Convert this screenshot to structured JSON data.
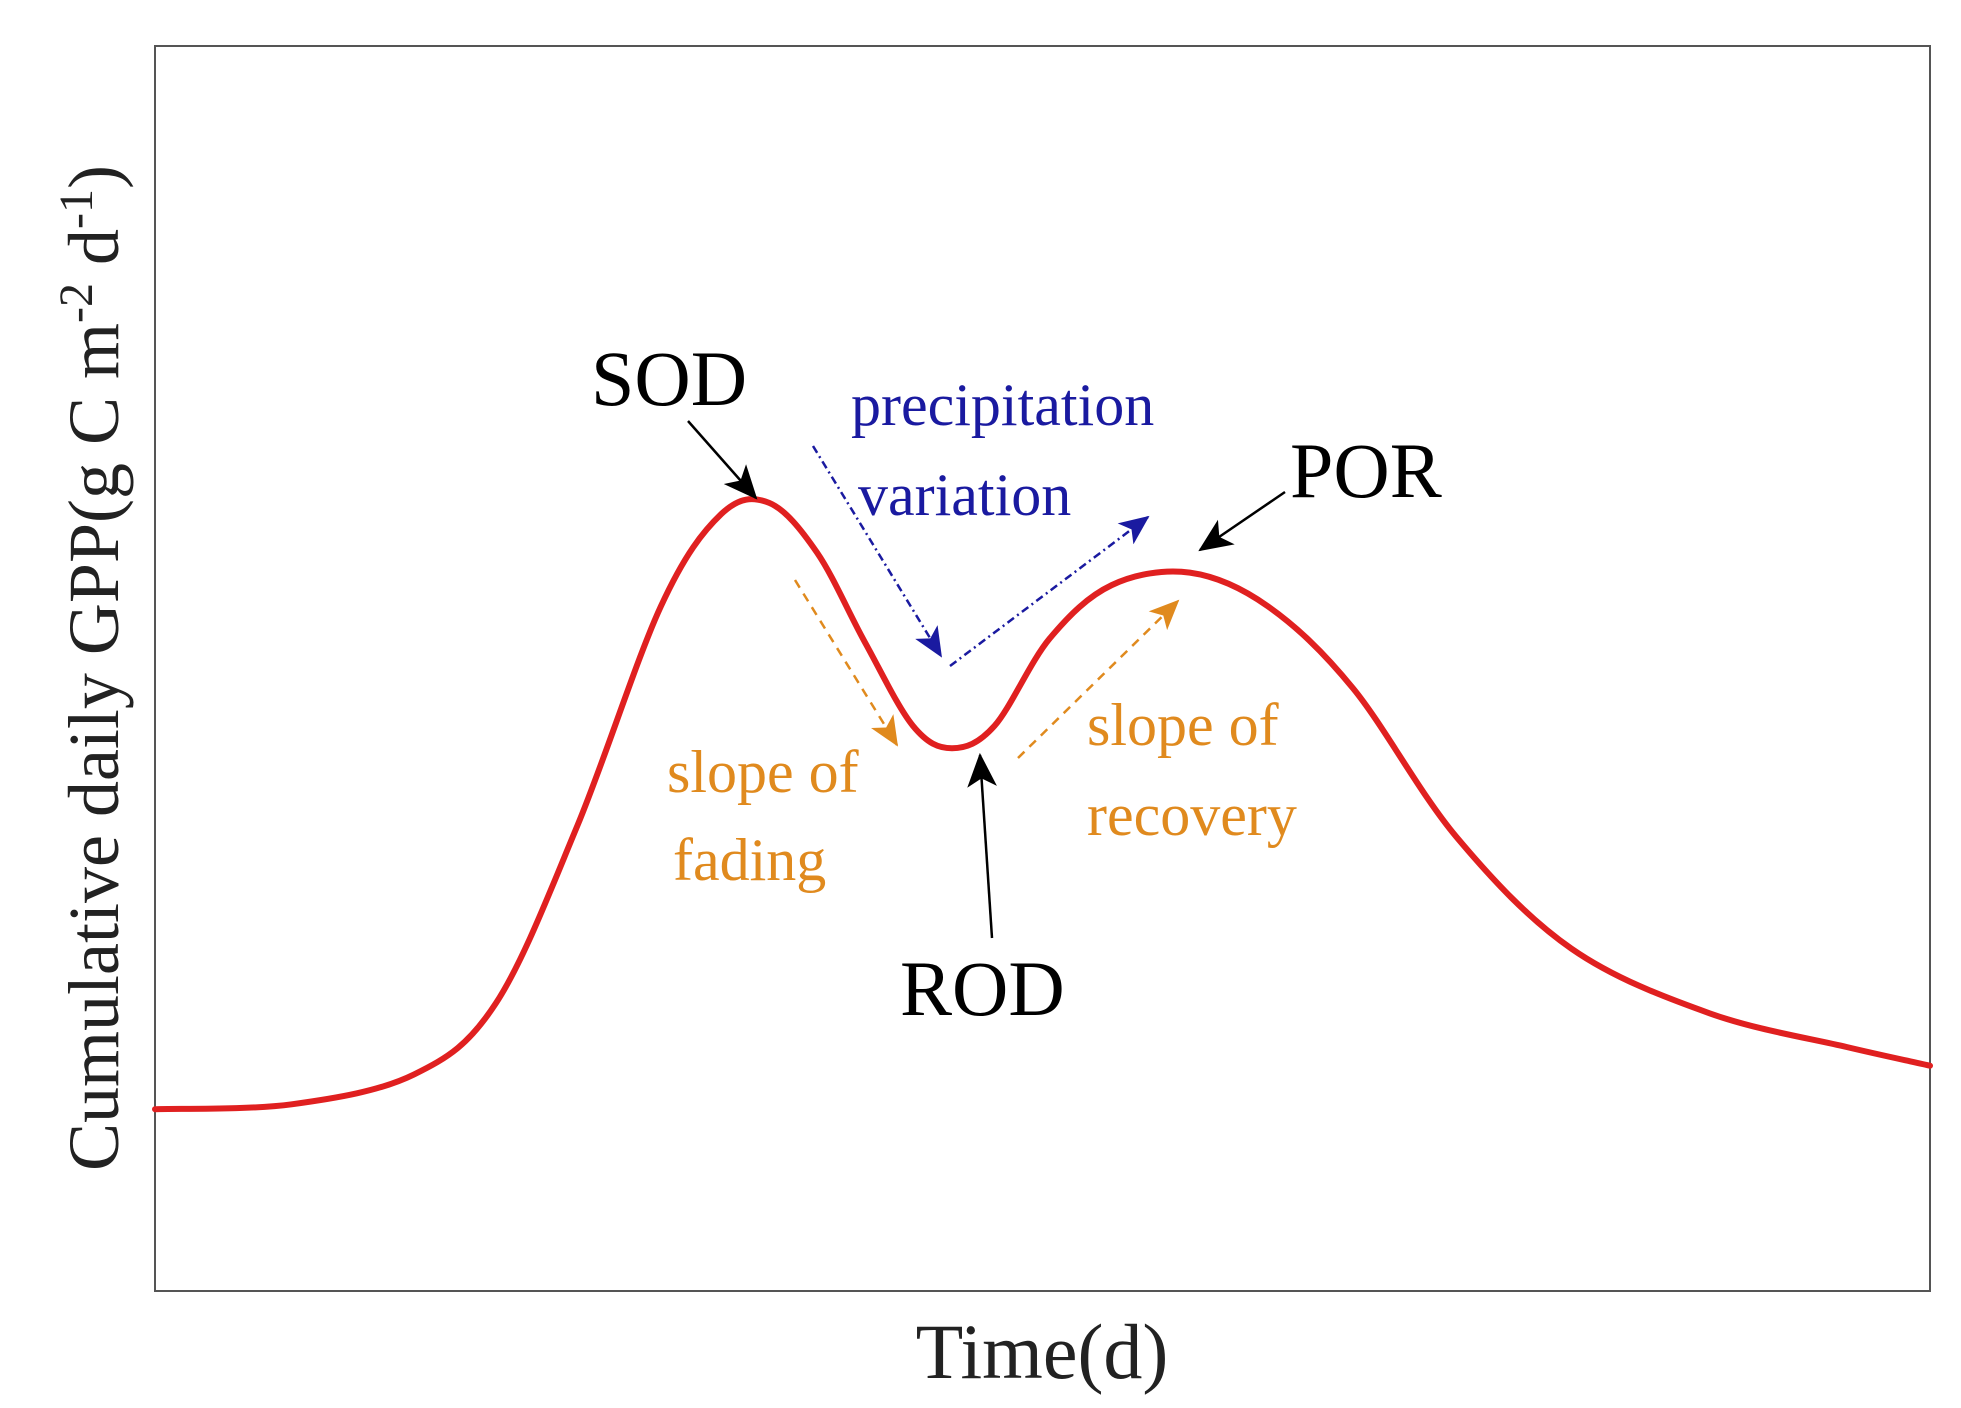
{
  "chart_data": {
    "type": "line",
    "title": "",
    "xlabel": "Time(d)",
    "ylabel": {
      "main": "Cumulative daily GPP(g C m",
      "sup1": "-2",
      "mid": " d",
      "sup2": "-1",
      "end": ")"
    },
    "x_ticks": [],
    "y_ticks": [],
    "xlim": [
      0,
      100
    ],
    "ylim": [
      0,
      100
    ],
    "grid": false,
    "legend": null,
    "series": [
      {
        "name": "Cumulative daily GPP",
        "color": "#e02020",
        "points": [
          {
            "x": 0,
            "y": 14.6
          },
          {
            "x": 7.7,
            "y": 15
          },
          {
            "x": 14.6,
            "y": 17.4
          },
          {
            "x": 19.2,
            "y": 23.1
          },
          {
            "x": 23.8,
            "y": 37.4
          },
          {
            "x": 28.5,
            "y": 55
          },
          {
            "x": 31.9,
            "y": 62.4
          },
          {
            "x": 34.6,
            "y": 63.3
          },
          {
            "x": 37.3,
            "y": 59.3
          },
          {
            "x": 40,
            "y": 52.1
          },
          {
            "x": 42.7,
            "y": 45.4
          },
          {
            "x": 44.9,
            "y": 43.6
          },
          {
            "x": 47.3,
            "y": 45.4
          },
          {
            "x": 50.4,
            "y": 52.4
          },
          {
            "x": 53.9,
            "y": 56.7
          },
          {
            "x": 58.3,
            "y": 57.7
          },
          {
            "x": 62.7,
            "y": 55
          },
          {
            "x": 67.5,
            "y": 48.4
          },
          {
            "x": 73.3,
            "y": 36.5
          },
          {
            "x": 79.8,
            "y": 27.5
          },
          {
            "x": 87.6,
            "y": 22.3
          },
          {
            "x": 95.3,
            "y": 19.6
          },
          {
            "x": 100,
            "y": 18.1
          }
        ]
      }
    ],
    "annotations": {
      "sod": {
        "label": "SOD",
        "color": "#000000",
        "x": 34.6,
        "y": 63.3
      },
      "rod": {
        "label": "ROD",
        "color": "#000000",
        "x": 44.9,
        "y": 43.6
      },
      "por": {
        "label": "POR",
        "color": "#000000",
        "x": 58.3,
        "y": 57.7
      },
      "precipitation": {
        "line1": "precipitation",
        "line2": "variation",
        "color": "#1a1aa0"
      },
      "fading": {
        "line1": "slope of",
        "line2": "fading",
        "color": "#e08a1e"
      },
      "recovery": {
        "line1": "slope of",
        "line2": "recovery",
        "color": "#e08a1e"
      }
    }
  }
}
